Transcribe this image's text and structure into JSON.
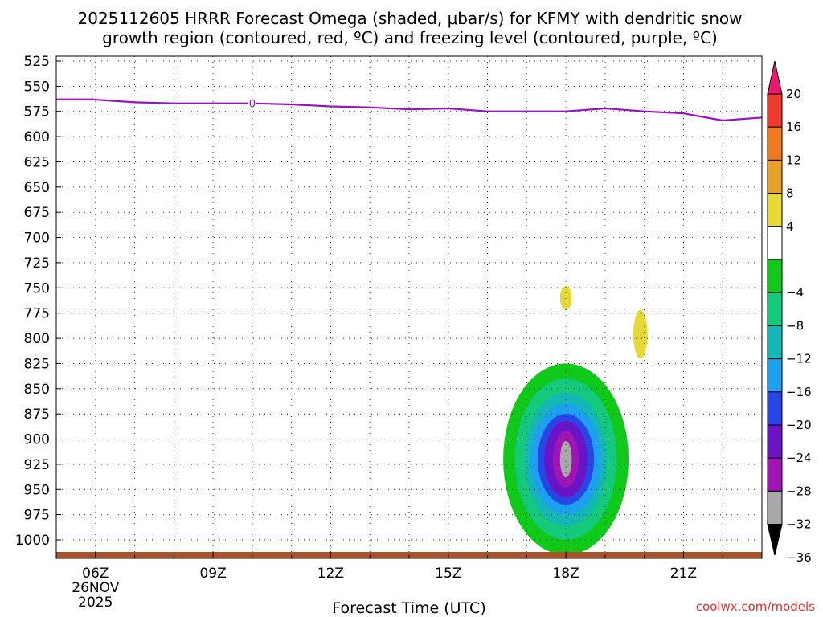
{
  "chart_data": {
    "type": "heatmap",
    "title_line1": "2025112605 HRRR Forecast Omega (shaded, μbar/s) for KFMY with dendritic snow",
    "title_line2": "growth region (contoured, red, ºC) and freezing level (contoured, purple, ºC)",
    "xlabel": "Forecast Time (UTC)",
    "ylabel": "Pressure (mb)",
    "credit": "coolwx.com/models",
    "x_range_hours_utc": [
      5.0,
      23.0
    ],
    "x_ticks": [
      {
        "hour": 6,
        "label": "06Z",
        "sub1": "26NOV",
        "sub2": "2025"
      },
      {
        "hour": 9,
        "label": "09Z"
      },
      {
        "hour": 12,
        "label": "12Z"
      },
      {
        "hour": 15,
        "label": "15Z"
      },
      {
        "hour": 18,
        "label": "18Z"
      },
      {
        "hour": 21,
        "label": "21Z"
      }
    ],
    "y_ticks": [
      525,
      550,
      575,
      600,
      625,
      650,
      675,
      700,
      725,
      750,
      775,
      800,
      825,
      850,
      875,
      900,
      925,
      950,
      975,
      1000
    ],
    "y_range_mb": [
      515,
      1015
    ],
    "colorbar": {
      "labels": [
        "20",
        "16",
        "12",
        "8",
        "4",
        "−4",
        "−8",
        "−12",
        "−16",
        "−20",
        "−24",
        "−28",
        "−32",
        "−36"
      ],
      "bins": [
        {
          "lo": 20,
          "hi": 24,
          "color": "#e8196e"
        },
        {
          "lo": 16,
          "hi": 20,
          "color": "#ee3a2c"
        },
        {
          "lo": 12,
          "hi": 16,
          "color": "#f07b1f"
        },
        {
          "lo": 8,
          "hi": 12,
          "color": "#e6a228"
        },
        {
          "lo": 4,
          "hi": 8,
          "color": "#e6d835"
        },
        {
          "lo": -4,
          "hi": 4,
          "color": "#ffffff"
        },
        {
          "lo": -8,
          "hi": -4,
          "color": "#10c81a"
        },
        {
          "lo": -12,
          "hi": -8,
          "color": "#14c87c"
        },
        {
          "lo": -16,
          "hi": -12,
          "color": "#14b6b6"
        },
        {
          "lo": -20,
          "hi": -16,
          "color": "#1ea0f0"
        },
        {
          "lo": -24,
          "hi": -20,
          "color": "#2846e6"
        },
        {
          "lo": -28,
          "hi": -24,
          "color": "#6a14c8"
        },
        {
          "lo": -32,
          "hi": -28,
          "color": "#a014b4"
        },
        {
          "lo": -36,
          "hi": -32,
          "color": "#a8a8a8"
        },
        {
          "lo": -40,
          "hi": -36,
          "color": "#000000"
        }
      ]
    },
    "freezing_level": {
      "color": "#9a10c8",
      "label": "0",
      "label_hour": 10.0,
      "points": [
        {
          "hour": 5.0,
          "mb": 563
        },
        {
          "hour": 5.9,
          "mb": 563
        },
        {
          "hour": 7.0,
          "mb": 566
        },
        {
          "hour": 8.0,
          "mb": 567
        },
        {
          "hour": 9.0,
          "mb": 567
        },
        {
          "hour": 10.0,
          "mb": 567
        },
        {
          "hour": 11.0,
          "mb": 568
        },
        {
          "hour": 12.0,
          "mb": 570
        },
        {
          "hour": 13.0,
          "mb": 571
        },
        {
          "hour": 14.0,
          "mb": 573
        },
        {
          "hour": 15.0,
          "mb": 572
        },
        {
          "hour": 16.0,
          "mb": 575
        },
        {
          "hour": 17.0,
          "mb": 575
        },
        {
          "hour": 18.0,
          "mb": 575
        },
        {
          "hour": 19.0,
          "mb": 572
        },
        {
          "hour": 20.0,
          "mb": 575
        },
        {
          "hour": 21.0,
          "mb": 577
        },
        {
          "hour": 22.0,
          "mb": 584
        },
        {
          "hour": 23.0,
          "mb": 581
        }
      ]
    },
    "omega_features": [
      {
        "omega": -4,
        "hour": 20.9,
        "mb": 533,
        "rh": 0.25,
        "rp": 26,
        "note": "top edge, reaches 519 mb"
      },
      {
        "omega": -4,
        "hour": 15.0,
        "mb": 766,
        "rh": 0.15,
        "rp": 29
      },
      {
        "omega": 4,
        "hour": 18.0,
        "mb": 760,
        "rh": 0.15,
        "rp": 12
      },
      {
        "omega": 4,
        "hour": 19.9,
        "mb": 796,
        "rh": 0.18,
        "rp": 24
      },
      {
        "omega": -4,
        "hour": 7.0,
        "mb": 963,
        "rh": 0.18,
        "rp": 15
      },
      {
        "omega": -4,
        "hour": 22.1,
        "mb": 800,
        "rh": 0.64,
        "rp": 57
      },
      {
        "omega": -4,
        "hour": 17.8,
        "mb": 920,
        "rh": 2.5,
        "rp": 122
      },
      {
        "omega": -8,
        "hour": 18.0,
        "mb": 920,
        "rh": 1.6,
        "rp": 95
      },
      {
        "omega": -12,
        "hour": 18.0,
        "mb": 920,
        "rh": 1.3,
        "rp": 80
      },
      {
        "omega": -16,
        "hour": 18.0,
        "mb": 920,
        "rh": 1.05,
        "rp": 66
      },
      {
        "omega": -20,
        "hour": 18.0,
        "mb": 920,
        "rh": 0.9,
        "rp": 55
      },
      {
        "omega": -24,
        "hour": 18.0,
        "mb": 920,
        "rh": 0.72,
        "rp": 45
      },
      {
        "omega": -28,
        "hour": 18.0,
        "mb": 920,
        "rh": 0.55,
        "rp": 38
      },
      {
        "omega": -32,
        "hour": 18.0,
        "mb": 920,
        "rh": 0.33,
        "rp": 28
      },
      {
        "omega": -36,
        "hour": 18.0,
        "mb": 920,
        "rh": 0.15,
        "rp": 18
      }
    ],
    "ground_color": "#a8522a"
  }
}
